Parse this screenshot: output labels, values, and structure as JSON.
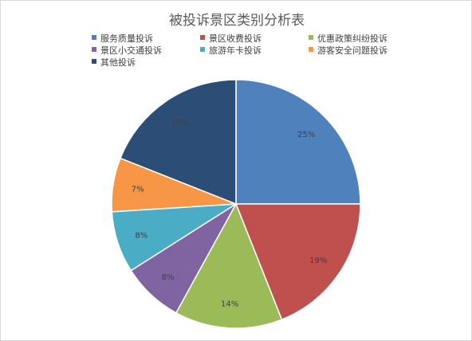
{
  "chart_data": {
    "type": "pie",
    "title": "被投诉景区类别分析表",
    "categories": [
      "服务质量投诉",
      "景区收费投诉",
      "优惠政策纠纷投诉",
      "景区小交通投诉",
      "旅游年卡投诉",
      "游客安全问题投诉",
      "其他投诉"
    ],
    "values": [
      25,
      19,
      14,
      8,
      8,
      7,
      19
    ],
    "labels": [
      "25%",
      "19%",
      "14%",
      "8%",
      "8%",
      "7%",
      "19%"
    ],
    "colors": [
      "#4f81bd",
      "#c0504d",
      "#9bbb59",
      "#8064a2",
      "#4bacc6",
      "#f79646",
      "#2c4d75"
    ],
    "legend_position": "top"
  }
}
